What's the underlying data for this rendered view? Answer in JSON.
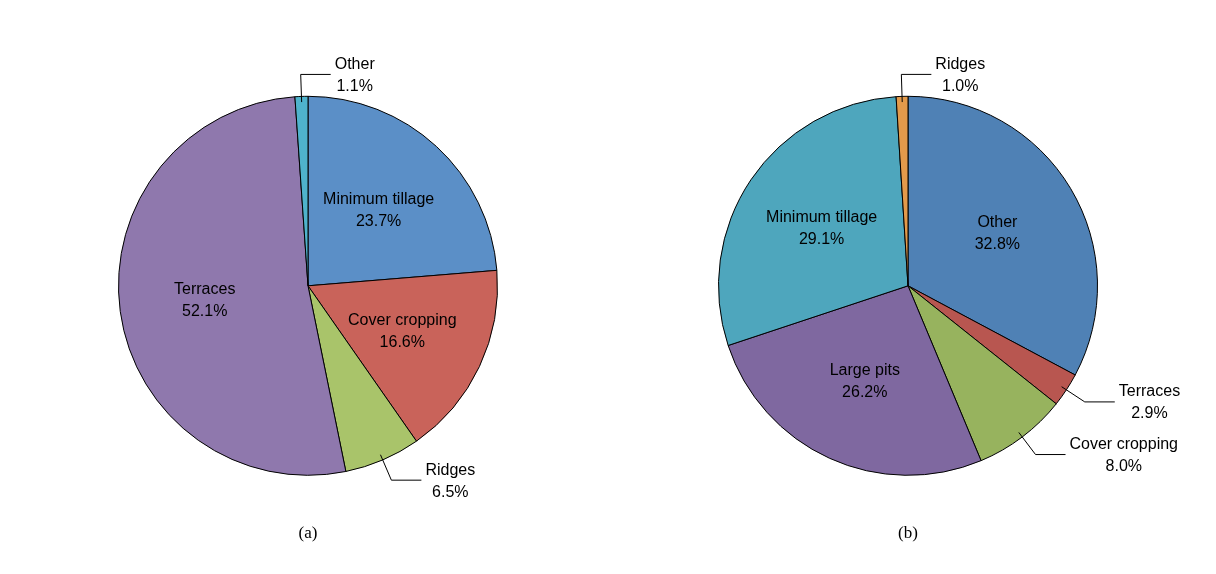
{
  "chart_data": [
    {
      "type": "pie",
      "title": "(a)",
      "categories": [
        "Minimum tillage",
        "Cover cropping",
        "Ridges",
        "Terraces",
        "Other"
      ],
      "values": [
        23.7,
        16.6,
        6.5,
        52.1,
        1.1
      ],
      "value_labels": [
        "23.7%",
        "16.6%",
        "6.5%",
        "52.1%",
        "1.1%"
      ],
      "colors": [
        "#5b8fc7",
        "#c9635a",
        "#a9c46a",
        "#8f78ad",
        "#4fb3cc"
      ]
    },
    {
      "type": "pie",
      "title": "(b)",
      "categories": [
        "Other",
        "Terraces",
        "Cover cropping",
        "Large pits",
        "Minimum tillage",
        "Ridges"
      ],
      "values": [
        32.8,
        2.9,
        8.0,
        26.2,
        29.1,
        1.0
      ],
      "value_labels": [
        "32.8%",
        "2.9%",
        "8.0%",
        "26.2%",
        "29.1%",
        "1.0%"
      ],
      "colors": [
        "#4f81b5",
        "#b85650",
        "#97b35e",
        "#7f68a0",
        "#4ea6bd",
        "#e39a4b"
      ]
    }
  ]
}
